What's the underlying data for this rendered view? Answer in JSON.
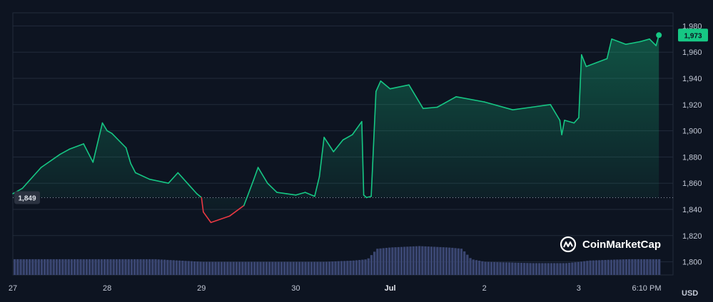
{
  "colors": {
    "background": "#0d1421",
    "grid": "#222b3b",
    "up_line": "#16c784",
    "down_line": "#ea3943",
    "volume": "#3a4671",
    "baseline_badge": "#2b3240",
    "current_badge": "#16c784"
  },
  "brand": {
    "name": "CoinMarketCap",
    "icon": "coinmarketcap-logo-icon"
  },
  "currency_label": "USD",
  "chart_data": {
    "type": "area",
    "ylim": [
      1790,
      1990
    ],
    "yticks": [
      1800,
      1820,
      1840,
      1860,
      1880,
      1900,
      1920,
      1940,
      1960,
      1980
    ],
    "ytick_labels": [
      "1,800",
      "1,820",
      "1,840",
      "1,860",
      "1,880",
      "1,900",
      "1,920",
      "1,940",
      "1,960",
      "1,980"
    ],
    "xlim": [
      0,
      7
    ],
    "xticks": [
      {
        "x": 0,
        "label": "27"
      },
      {
        "x": 1,
        "label": "28"
      },
      {
        "x": 2,
        "label": "29"
      },
      {
        "x": 3,
        "label": "30"
      },
      {
        "x": 4,
        "label": "Jul"
      },
      {
        "x": 5,
        "label": "2"
      },
      {
        "x": 6,
        "label": "3"
      },
      {
        "x": 6.72,
        "label": "6:10 PM"
      }
    ],
    "baseline": {
      "value": 1849,
      "label": "1,849"
    },
    "current": {
      "value": 1973,
      "label": "1,973"
    },
    "price": {
      "x": [
        0,
        0.1,
        0.3,
        0.5,
        0.6,
        0.75,
        0.85,
        0.95,
        1.0,
        1.05,
        1.2,
        1.25,
        1.3,
        1.45,
        1.65,
        1.75,
        1.85,
        1.95,
        2.0,
        2.02,
        2.1,
        2.3,
        2.45,
        2.55,
        2.6,
        2.7,
        2.8,
        2.9,
        3.0,
        3.1,
        3.2,
        3.25,
        3.3,
        3.4,
        3.5,
        3.6,
        3.7,
        3.72,
        3.75,
        3.8,
        3.85,
        3.9,
        4.0,
        4.2,
        4.35,
        4.5,
        4.7,
        5.0,
        5.3,
        5.5,
        5.7,
        5.8,
        5.82,
        5.85,
        5.95,
        6.0,
        6.03,
        6.08,
        6.3,
        6.35,
        6.5,
        6.65,
        6.75,
        6.82,
        6.85
      ],
      "y": [
        1852,
        1856,
        1872,
        1882,
        1886,
        1890,
        1876,
        1906,
        1900,
        1898,
        1887,
        1875,
        1868,
        1863,
        1860,
        1868,
        1860,
        1852,
        1849,
        1838,
        1830,
        1835,
        1843,
        1862,
        1872,
        1860,
        1853,
        1852,
        1851,
        1853,
        1850,
        1865,
        1895,
        1884,
        1893,
        1897,
        1907,
        1851,
        1849,
        1850,
        1930,
        1938,
        1932,
        1935,
        1917,
        1918,
        1926,
        1922,
        1916,
        1918,
        1920,
        1908,
        1897,
        1908,
        1906,
        1910,
        1958,
        1949,
        1955,
        1970,
        1966,
        1968,
        1970,
        1965,
        1973
      ]
    },
    "volume": {
      "x": [
        0,
        0.3,
        0.6,
        1.0,
        1.5,
        2.0,
        2.5,
        3.0,
        3.3,
        3.6,
        3.75,
        3.85,
        4.0,
        4.3,
        4.6,
        4.75,
        4.85,
        5.0,
        5.5,
        5.85,
        6.0,
        6.1,
        6.5,
        6.85
      ],
      "y": [
        1802,
        1802,
        1802,
        1802,
        1802,
        1800,
        1800,
        1800,
        1800,
        1801,
        1802,
        1810,
        1811,
        1812,
        1811,
        1810,
        1802,
        1800,
        1799,
        1799,
        1800,
        1801,
        1802,
        1802
      ]
    }
  }
}
